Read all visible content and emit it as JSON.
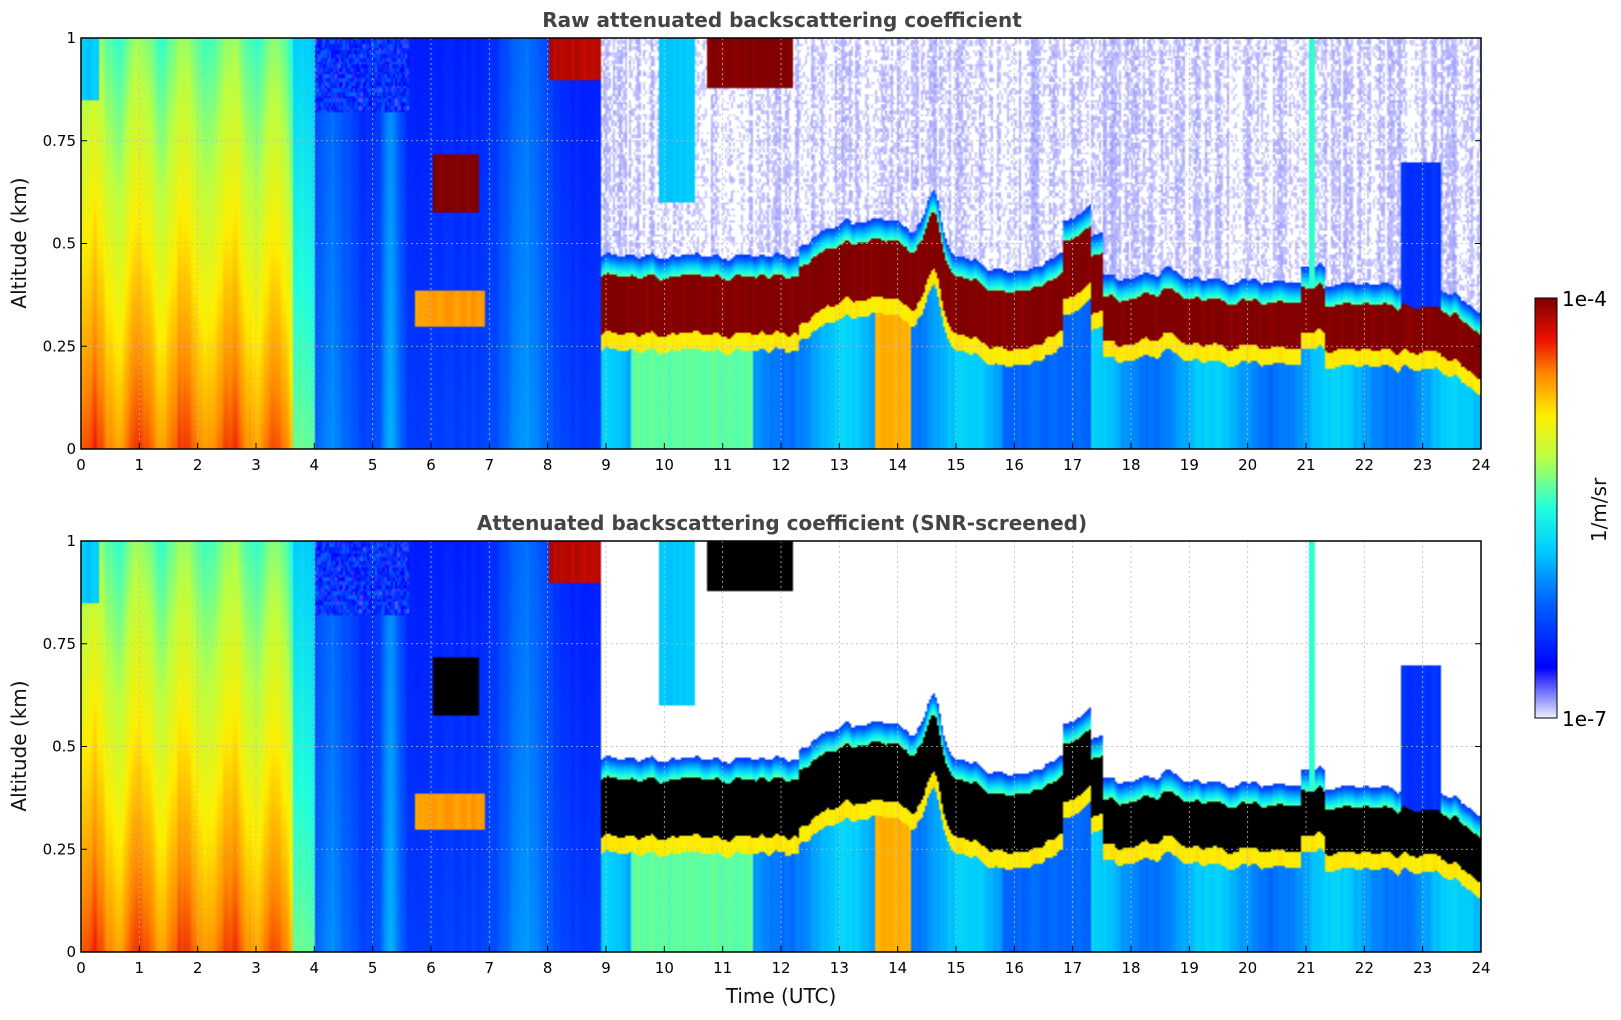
{
  "chart_data": [
    {
      "type": "heatmap",
      "title": "Raw attenuated backscattering coefficient",
      "ylabel": "Altitude (km)",
      "xlabel": "",
      "x_ticks": [
        "0",
        "1",
        "2",
        "3",
        "4",
        "5",
        "6",
        "7",
        "8",
        "9",
        "10",
        "11",
        "12",
        "13",
        "14",
        "15",
        "16",
        "17",
        "18",
        "19",
        "20",
        "21",
        "22",
        "23",
        "24"
      ],
      "y_ticks": [
        "0",
        "0.25",
        "0.5",
        "0.75",
        "1"
      ],
      "xlim": [
        0,
        24
      ],
      "ylim": [
        0,
        1
      ],
      "grid": true,
      "screened": false
    },
    {
      "type": "heatmap",
      "title": "Attenuated backscattering coefficient (SNR-screened)",
      "ylabel": "Altitude (km)",
      "xlabel": "Time (UTC)",
      "x_ticks": [
        "0",
        "1",
        "2",
        "3",
        "4",
        "5",
        "6",
        "7",
        "8",
        "9",
        "10",
        "11",
        "12",
        "13",
        "14",
        "15",
        "16",
        "17",
        "18",
        "19",
        "20",
        "21",
        "22",
        "23",
        "24"
      ],
      "y_ticks": [
        "0",
        "0.25",
        "0.5",
        "0.75",
        "1"
      ],
      "xlim": [
        0,
        24
      ],
      "ylim": [
        0,
        1
      ],
      "grid": true,
      "screened": true
    }
  ],
  "colorbar": {
    "label": "1/m/sr",
    "max_label": "1e-4",
    "min_label": "1e-7",
    "scale": "log",
    "colormap": "jet"
  },
  "colors": {
    "saturated_screened": "#000000",
    "grid": "#bbbbbb",
    "title": "#444444"
  }
}
